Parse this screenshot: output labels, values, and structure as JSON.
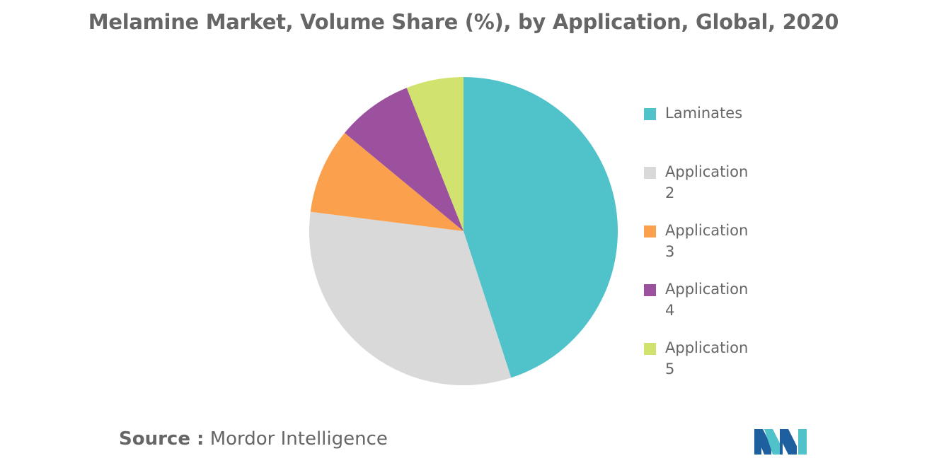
{
  "chart_data": {
    "type": "pie",
    "title": "Melamine Market, Volume Share (%), by Application, Global, 2020",
    "slices": [
      {
        "label": "Laminates",
        "value": 45,
        "color": "#4fc3c9"
      },
      {
        "label": "Application 2",
        "value": 32,
        "color": "#d9d9d9"
      },
      {
        "label": "Application 3",
        "value": 9,
        "color": "#fba04c"
      },
      {
        "label": "Application 4",
        "value": 8,
        "color": "#9b519e"
      },
      {
        "label": "Application 5",
        "value": 6,
        "color": "#d2e26e"
      }
    ],
    "legend_position": "right"
  },
  "source": {
    "label": "Source :",
    "text": "Mordor Intelligence"
  },
  "logo": {
    "colors": [
      "#1e5fa0",
      "#4fc3c9"
    ]
  }
}
